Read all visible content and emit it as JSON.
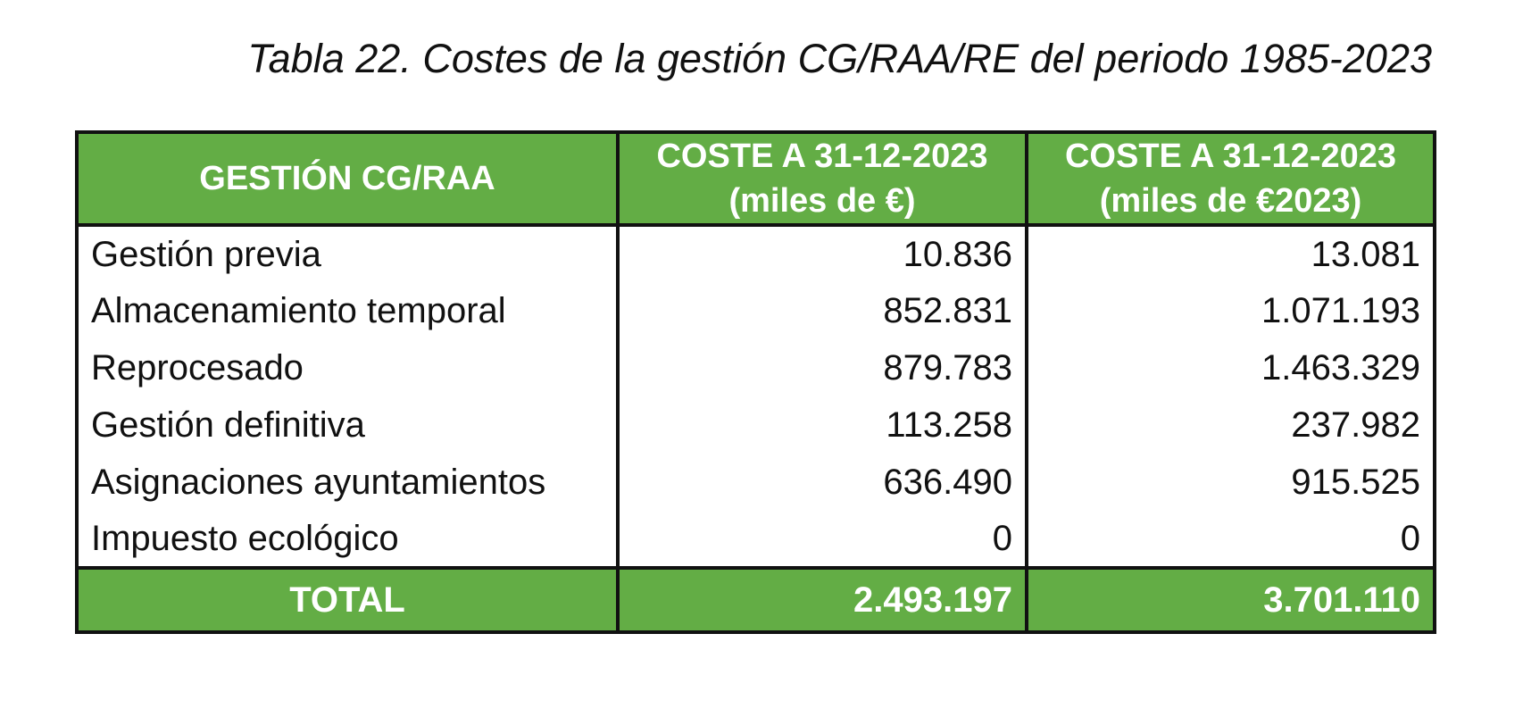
{
  "caption": "Tabla 22. Costes de la gestión CG/RAA/RE del periodo 1985-2023",
  "colors": {
    "header_background": "#63ad45",
    "header_text": "#ffffff",
    "border": "#111111"
  },
  "table": {
    "headers": [
      {
        "line1": "GESTIÓN CG/RAA",
        "line2": ""
      },
      {
        "line1": "COSTE A 31-12-2023",
        "line2": "(miles de €)"
      },
      {
        "line1": "COSTE A 31-12-2023",
        "line2": "(miles de €2023)"
      }
    ],
    "rows": [
      {
        "label": "Gestión previa",
        "cost_nominal": "10.836",
        "cost_2023": "13.081"
      },
      {
        "label": "Almacenamiento temporal",
        "cost_nominal": "852.831",
        "cost_2023": "1.071.193"
      },
      {
        "label": "Reprocesado",
        "cost_nominal": "879.783",
        "cost_2023": "1.463.329"
      },
      {
        "label": "Gestión definitiva",
        "cost_nominal": "113.258",
        "cost_2023": "237.982"
      },
      {
        "label": "Asignaciones ayuntamientos",
        "cost_nominal": "636.490",
        "cost_2023": "915.525"
      },
      {
        "label": "Impuesto ecológico",
        "cost_nominal": "0",
        "cost_2023": "0"
      }
    ],
    "total": {
      "label": "TOTAL",
      "cost_nominal": "2.493.197",
      "cost_2023": "3.701.110"
    }
  }
}
